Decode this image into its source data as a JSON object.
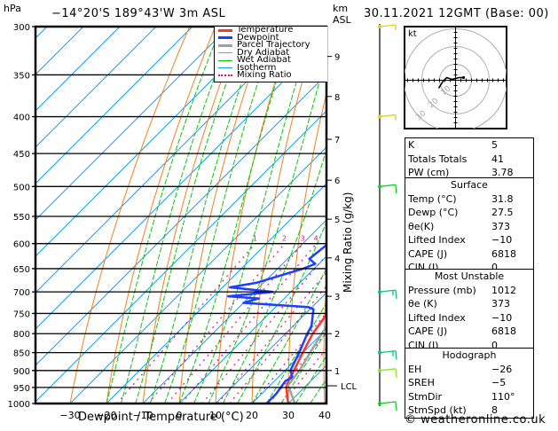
{
  "header": {
    "pressure_unit": "hPa",
    "location": "−14°20'S  189°43'W  3m  ASL",
    "height_unit": "km",
    "height_unit_sub": "ASL",
    "datetime": "30.11.2021  12GMT  (Base: 00)"
  },
  "legend": [
    {
      "label": "Temperature",
      "color": "#ff3333",
      "style": "thick"
    },
    {
      "label": "Dewpoint",
      "color": "#1f3fff",
      "style": "thick"
    },
    {
      "label": "Parcel Trajectory",
      "color": "#a0a0a0",
      "style": "thick"
    },
    {
      "label": "Dry Adiabat",
      "color": "#f08020",
      "style": "thin"
    },
    {
      "label": "Wet Adiabat",
      "color": "#10c010",
      "style": "thin"
    },
    {
      "label": "Isotherm",
      "color": "#10a0f0",
      "style": "thin"
    },
    {
      "label": "Mixing Ratio",
      "color": "#e0108f",
      "style": "dotted"
    }
  ],
  "chart_data": {
    "type": "line",
    "title": "Skew-T log-P diagram",
    "xlabel": "Dewpoint / Temperature (°C)",
    "ylabel": "hPa",
    "right_label": "Mixing Ratio (g/kg)",
    "x_ticks": [
      -30,
      -20,
      -10,
      0,
      10,
      20,
      30,
      40
    ],
    "x_range": [
      -40,
      40
    ],
    "pressure_ticks": [
      300,
      350,
      400,
      450,
      500,
      550,
      600,
      650,
      700,
      750,
      800,
      850,
      900,
      950,
      1000
    ],
    "pressure_range": [
      300,
      1000
    ],
    "height_ticks_km": [
      {
        "label": "9",
        "p": 330
      },
      {
        "label": "8",
        "p": 375
      },
      {
        "label": "7",
        "p": 430
      },
      {
        "label": "6",
        "p": 490
      },
      {
        "label": "5",
        "p": 555
      },
      {
        "label": "4",
        "p": 628
      },
      {
        "label": "3",
        "p": 710
      },
      {
        "label": "2",
        "p": 800
      },
      {
        "label": "1",
        "p": 900
      },
      {
        "label": "LCL",
        "p": 945
      }
    ],
    "mixing_ratio_labels": [
      "1",
      "2",
      "3",
      "4",
      "6",
      "8",
      "10",
      "15",
      "20",
      "25"
    ],
    "mixing_ratio_values": [
      1,
      2,
      3,
      4,
      6,
      8,
      10,
      15,
      20,
      25
    ],
    "series": [
      {
        "name": "Temperature",
        "color": "#ff3333",
        "points": [
          [
            1000,
            30
          ],
          [
            990,
            29
          ],
          [
            970,
            27
          ],
          [
            950,
            25
          ],
          [
            925,
            23.5
          ],
          [
            900,
            22.5
          ],
          [
            850,
            20
          ],
          [
            800,
            17.5
          ],
          [
            750,
            16
          ],
          [
            700,
            11.5
          ],
          [
            650,
            8
          ],
          [
            600,
            4.5
          ],
          [
            550,
            0
          ],
          [
            500,
            -5
          ],
          [
            450,
            -11
          ],
          [
            400,
            -17
          ],
          [
            375,
            -21
          ],
          [
            350,
            -24.5
          ],
          [
            300,
            -33
          ]
        ]
      },
      {
        "name": "Dewpoint",
        "color": "#1f3fff",
        "points": [
          [
            1000,
            24
          ],
          [
            995,
            24
          ],
          [
            970,
            24
          ],
          [
            950,
            23.5
          ],
          [
            930,
            23
          ],
          [
            920,
            24
          ],
          [
            900,
            21.5
          ],
          [
            850,
            19
          ],
          [
            800,
            16
          ],
          [
            780,
            15
          ],
          [
            760,
            13
          ],
          [
            740,
            11
          ],
          [
            735,
            9
          ],
          [
            725,
            -10
          ],
          [
            715,
            -7
          ],
          [
            710,
            -16
          ],
          [
            700,
            -5
          ],
          [
            690,
            -18
          ],
          [
            680,
            -12
          ],
          [
            650,
            -3
          ],
          [
            640,
            -1
          ],
          [
            630,
            -4
          ],
          [
            600,
            -3
          ],
          [
            580,
            -2
          ],
          [
            560,
            0
          ],
          [
            540,
            -3
          ],
          [
            520,
            -6
          ],
          [
            505,
            -8
          ],
          [
            490,
            -12
          ],
          [
            475,
            -14
          ],
          [
            455,
            -18
          ],
          [
            440,
            -22
          ],
          [
            425,
            -26
          ],
          [
            405,
            -22
          ],
          [
            390,
            -28
          ],
          [
            375,
            -22
          ],
          [
            365,
            -34
          ],
          [
            355,
            -30
          ],
          [
            345,
            -34
          ],
          [
            335,
            -28
          ],
          [
            325,
            -50
          ],
          [
            320,
            -30
          ],
          [
            315,
            -32
          ],
          [
            305,
            -60
          ],
          [
            300,
            -61
          ]
        ]
      },
      {
        "name": "Parcel Trajectory",
        "color": "#a0a0a0",
        "points": [
          [
            1000,
            31.8
          ],
          [
            960,
            27
          ],
          [
            945,
            25
          ],
          [
            900,
            24
          ],
          [
            850,
            22
          ],
          [
            800,
            20
          ],
          [
            750,
            18
          ],
          [
            700,
            15.5
          ],
          [
            650,
            12.5
          ],
          [
            600,
            9
          ],
          [
            550,
            5
          ],
          [
            500,
            0.5
          ],
          [
            450,
            -5
          ],
          [
            400,
            -11
          ],
          [
            375,
            -15
          ]
        ]
      }
    ],
    "wind_barbs": [
      {
        "p": 300,
        "speed_kt": 5,
        "color": "#e0d020"
      },
      {
        "p": 400,
        "speed_kt": 5,
        "color": "#e0d020"
      },
      {
        "p": 500,
        "speed_kt": 10,
        "color": "#10d020"
      },
      {
        "p": 700,
        "speed_kt": 15,
        "color": "#10c080"
      },
      {
        "p": 850,
        "speed_kt": 15,
        "color": "#10c080"
      },
      {
        "p": 900,
        "speed_kt": 10,
        "color": "#90e030"
      },
      {
        "p": 1000,
        "speed_kt": 10,
        "color": "#10d020"
      }
    ]
  },
  "hodograph": {
    "unit": "kt",
    "ring_labels": [
      "10",
      "20",
      "30"
    ]
  },
  "indices": {
    "rows": [
      {
        "label": "K",
        "value": "5"
      },
      {
        "label": "Totals Totals",
        "value": "41"
      },
      {
        "label": "PW (cm)",
        "value": "3.78"
      }
    ]
  },
  "surface": {
    "title": "Surface",
    "rows": [
      {
        "label": "Temp (°C)",
        "value": "31.8"
      },
      {
        "label": "Dewp (°C)",
        "value": "27.5"
      },
      {
        "label": "θe(K)",
        "value": "373"
      },
      {
        "label": "Lifted Index",
        "value": "−10"
      },
      {
        "label": "CAPE (J)",
        "value": "6818"
      },
      {
        "label": "CIN (J)",
        "value": "0"
      }
    ]
  },
  "most_unstable": {
    "title": "Most Unstable",
    "rows": [
      {
        "label": "Pressure (mb)",
        "value": "1012"
      },
      {
        "label": "θe (K)",
        "value": "373"
      },
      {
        "label": "Lifted Index",
        "value": "−10"
      },
      {
        "label": "CAPE (J)",
        "value": "6818"
      },
      {
        "label": "CIN (J)",
        "value": "0"
      }
    ]
  },
  "hodograph_table": {
    "title": "Hodograph",
    "rows": [
      {
        "label": "EH",
        "value": "−26"
      },
      {
        "label": "SREH",
        "value": "−5"
      },
      {
        "label": "StmDir",
        "value": "110°"
      },
      {
        "label": "StmSpd (kt)",
        "value": "8"
      }
    ]
  },
  "footer": {
    "copyright": "© weatheronline.co.uk"
  }
}
